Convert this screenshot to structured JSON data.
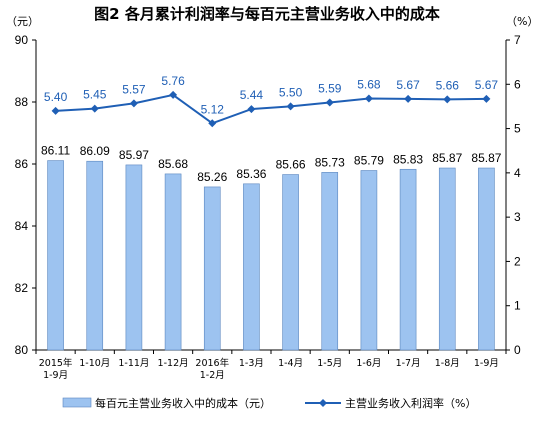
{
  "chart_data": {
    "type": "bar",
    "title": "图2  各月累计利润率与每百元主营业务收入中的成本",
    "left_unit": "（元）",
    "right_unit": "（%）",
    "categories": [
      [
        "2015年",
        "1-9月"
      ],
      [
        "1-10月"
      ],
      [
        "1-11月"
      ],
      [
        "1-12月"
      ],
      [
        "2016年",
        "1-2月"
      ],
      [
        "1-3月"
      ],
      [
        "1-4月"
      ],
      [
        "1-5月"
      ],
      [
        "1-6月"
      ],
      [
        "1-7月"
      ],
      [
        "1-8月"
      ],
      [
        "1-9月"
      ]
    ],
    "y_left": {
      "min": 80,
      "max": 90,
      "ticks": [
        "80",
        "82",
        "84",
        "86",
        "88",
        "90"
      ]
    },
    "y_right": {
      "min": 0,
      "max": 7,
      "ticks": [
        "0",
        "1",
        "2",
        "3",
        "4",
        "5",
        "6",
        "7"
      ]
    },
    "series": [
      {
        "name": "每百元主营业务收入中的成本（元）",
        "type": "bar",
        "axis": "left",
        "color": "#9DC3F0",
        "values": [
          86.11,
          86.09,
          85.97,
          85.68,
          85.26,
          85.36,
          85.66,
          85.73,
          85.79,
          85.83,
          85.87,
          85.87
        ],
        "labels": [
          "86.11",
          "86.09",
          "85.97",
          "85.68",
          "85.26",
          "85.36",
          "85.66",
          "85.73",
          "85.79",
          "85.83",
          "85.87",
          "85.87"
        ]
      },
      {
        "name": "主营业务收入利润率（%）",
        "type": "line",
        "axis": "right",
        "color": "#1F5FB5",
        "values": [
          5.4,
          5.45,
          5.57,
          5.76,
          5.12,
          5.44,
          5.5,
          5.59,
          5.68,
          5.67,
          5.66,
          5.67
        ],
        "labels": [
          "5.40",
          "5.45",
          "5.57",
          "5.76",
          "5.12",
          "5.44",
          "5.50",
          "5.59",
          "5.68",
          "5.67",
          "5.66",
          "5.67"
        ]
      }
    ],
    "grid": false,
    "legend_position": "bottom"
  }
}
